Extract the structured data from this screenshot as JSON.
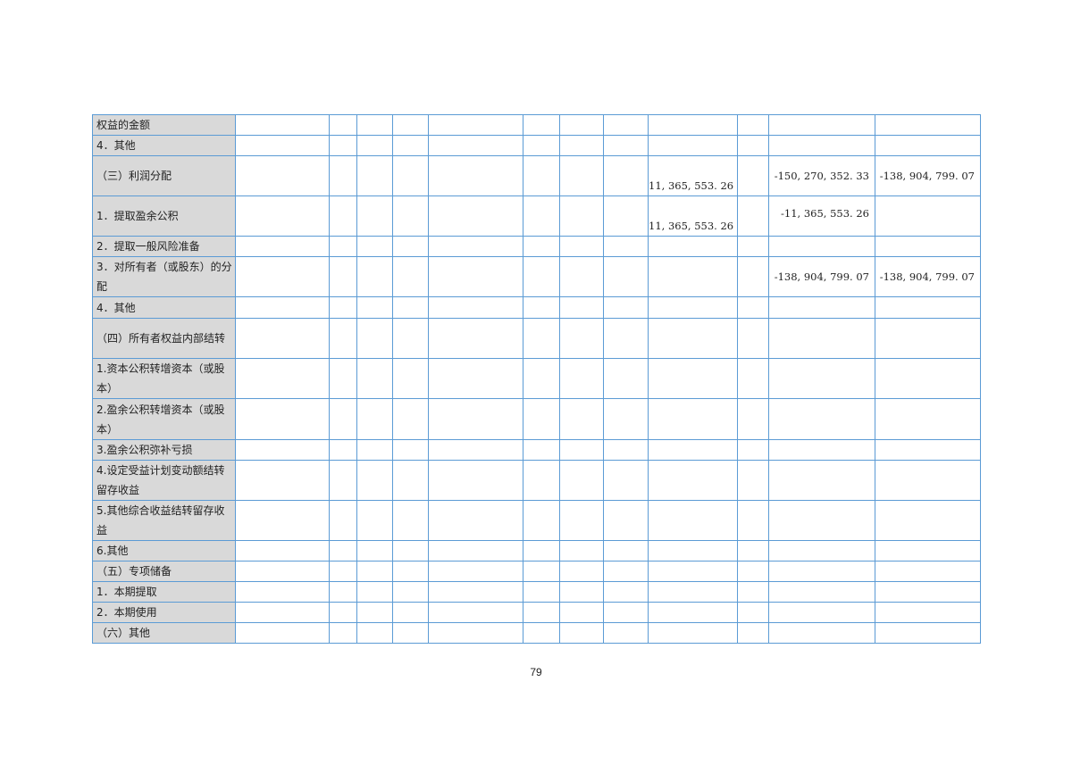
{
  "table": {
    "rows": [
      {
        "label": "权益的金额",
        "cells": {}
      },
      {
        "label": "4．其他",
        "cells": {}
      },
      {
        "label": "（三）利润分配",
        "cells": {
          "8": {
            "v": "11, 365, 553. 26",
            "a": "bottom"
          },
          "10": {
            "v": "-150, 270, 352. 33",
            "a": "mid"
          },
          "11": {
            "v": "-138, 904, 799. 07",
            "a": "mid"
          }
        }
      },
      {
        "label": "1．提取盈余公积",
        "cells": {
          "8": {
            "v": "11, 365, 553. 26",
            "a": "bottom"
          },
          "10": {
            "v": "-11, 365, 553. 26",
            "a": "top"
          }
        }
      },
      {
        "label": "2．提取一般风险准备",
        "cells": {}
      },
      {
        "label": "3．对所有者（或股东）的分配",
        "cells": {
          "10": {
            "v": "-138, 904, 799. 07",
            "a": "mid"
          },
          "11": {
            "v": "-138, 904, 799. 07",
            "a": "mid"
          }
        }
      },
      {
        "label": "4．其他",
        "cells": {}
      },
      {
        "label": "（四）所有者权益内部结转",
        "cells": {}
      },
      {
        "label": "1.资本公积转增资本（或股本）",
        "cells": {}
      },
      {
        "label": "2.盈余公积转增资本（或股本）",
        "cells": {}
      },
      {
        "label": "3.盈余公积弥补亏损",
        "cells": {}
      },
      {
        "label": "4.设定受益计划变动额结转留存收益",
        "cells": {}
      },
      {
        "label": "5.其他综合收益结转留存收益",
        "cells": {}
      },
      {
        "label": "6.其他",
        "cells": {}
      },
      {
        "label": "（五）专项储备",
        "cells": {}
      },
      {
        "label": "1．本期提取",
        "cells": {}
      },
      {
        "label": "2．本期使用",
        "cells": {}
      },
      {
        "label": "（六）其他",
        "cells": {}
      }
    ]
  },
  "page_number": "79",
  "colors": {
    "grid": "#5b9bd5",
    "label_bg": "#d9d9d9"
  }
}
